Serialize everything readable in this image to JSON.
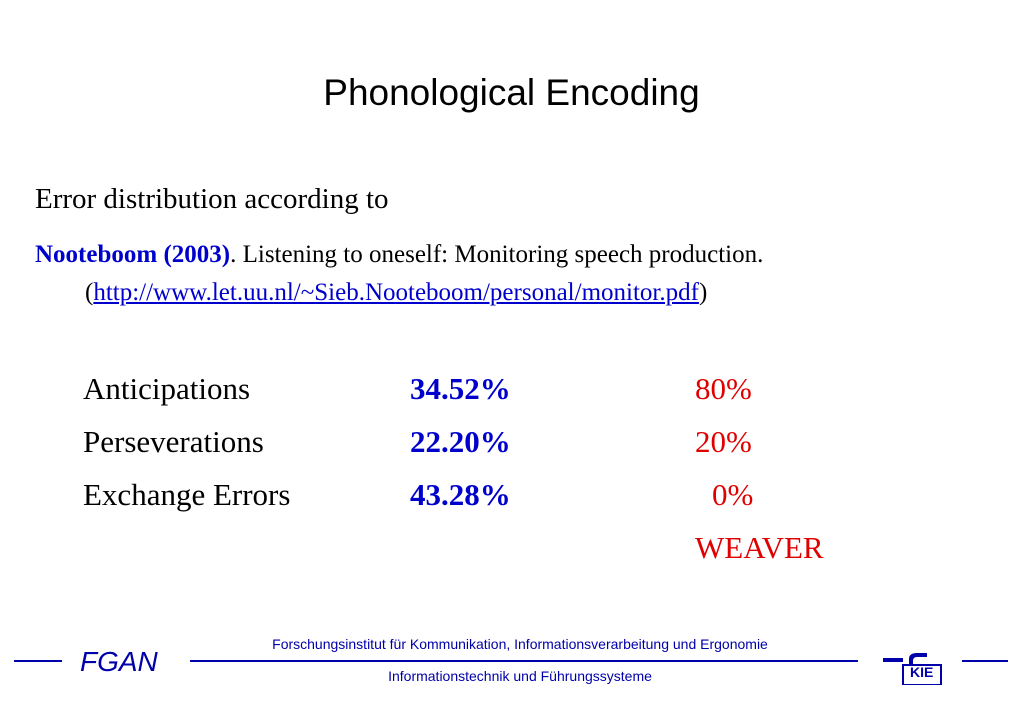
{
  "slide": {
    "title": "Phonological Encoding",
    "intro": "Error distribution according to",
    "reference": {
      "author": "Nooteboom (2003)",
      "rest": ". Listening to oneself: Monitoring speech production.",
      "open_paren": "(",
      "url": "http://www.let.uu.nl/~Sieb.Nooteboom/personal/monitor.pdf",
      "close_paren": ")"
    },
    "rows": [
      {
        "label": "Anticipations",
        "value": "34.52%",
        "weaver": "80%"
      },
      {
        "label": "Perseverations",
        "value": "22.20%",
        "weaver": "20%"
      },
      {
        "label": "Exchange Errors",
        "value": "43.28%",
        "weaver": "0%"
      }
    ],
    "weaver_label": "WEAVER"
  },
  "footer": {
    "org": "FGAN",
    "institute_line1": "Forschungsinstitut für Kommunikation, Informationsverarbeitung und Ergonomie",
    "institute_line2": "Informationstechnik und Führungssysteme",
    "logo_text": "KIE",
    "color": "#0000aa"
  }
}
